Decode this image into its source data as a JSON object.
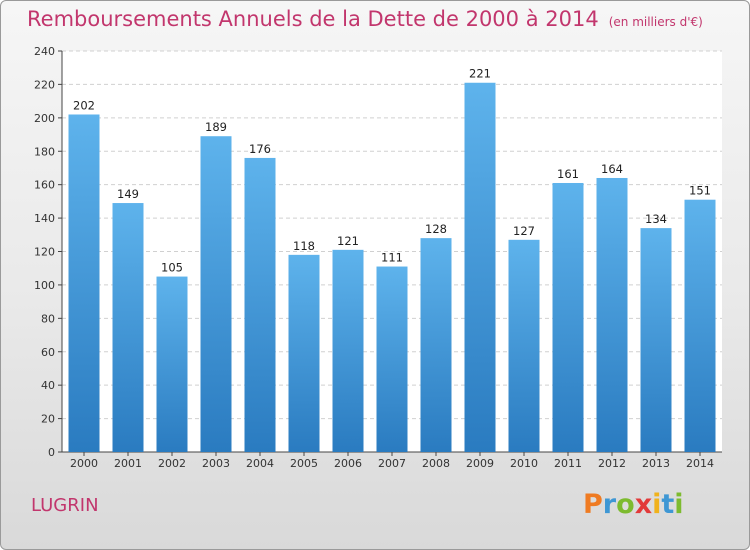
{
  "title": {
    "main": "Remboursements Annuels de la Dette de 2000 à 2014",
    "unit": "(en milliers d'€)"
  },
  "city": "LUGRIN",
  "logo": {
    "text": "Proxiti",
    "letters": [
      "P",
      "r",
      "o",
      "x",
      "i",
      "t",
      "i"
    ],
    "colors": {
      "P": "#ef7b22",
      "r": "#3e97d4",
      "o": "#7dbb2f",
      "x": "#e23a3a",
      "i": "#f0b21c",
      "t": "#3e97d4"
    }
  },
  "colors": {
    "title": "#c2366d",
    "bar_top": "#5eb3ec",
    "bar_bottom": "#2a7bc0"
  },
  "chart_data": {
    "type": "bar",
    "title": "Remboursements Annuels de la Dette de 2000 à 2014",
    "subtitle": "(en milliers d'€)",
    "xlabel": "",
    "ylabel": "",
    "categories": [
      "2000",
      "2001",
      "2002",
      "2003",
      "2004",
      "2005",
      "2006",
      "2007",
      "2008",
      "2009",
      "2010",
      "2011",
      "2012",
      "2013",
      "2014"
    ],
    "values": [
      202,
      149,
      105,
      189,
      176,
      118,
      121,
      111,
      128,
      221,
      127,
      161,
      164,
      134,
      151
    ],
    "ylim": [
      0,
      240
    ],
    "yticks": [
      0,
      20,
      40,
      60,
      80,
      100,
      120,
      140,
      160,
      180,
      200,
      220,
      240
    ],
    "grid": true,
    "data_labels": true
  }
}
